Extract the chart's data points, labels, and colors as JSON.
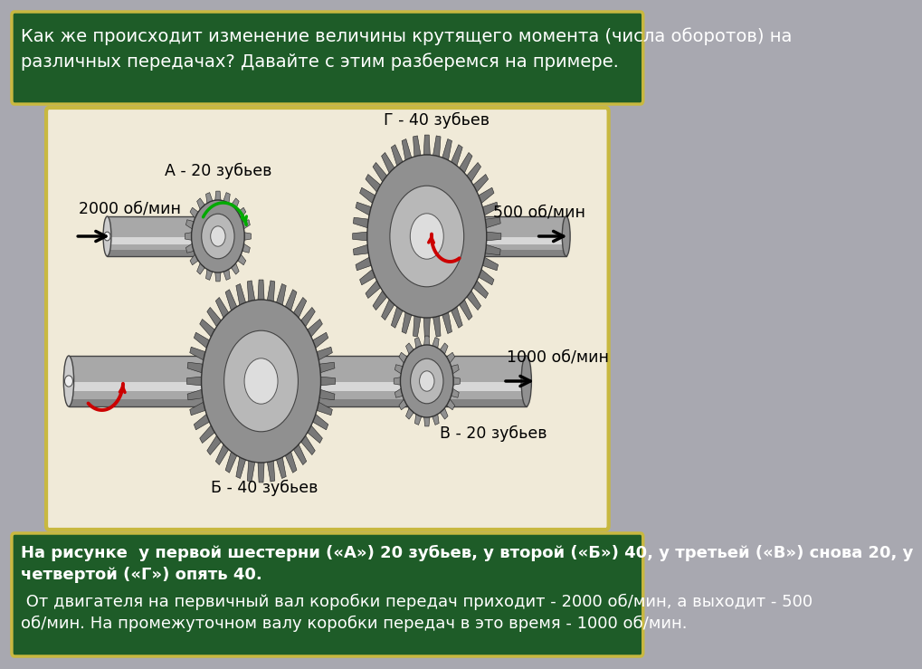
{
  "background_color": "#a8a8b0",
  "header_bg": "#1e5c28",
  "header_text_line1": "Как же происходит изменение величины крутящего момента (числа оборотов) на",
  "header_text_line2": "различных передачах? Давайте с этим разберемся на примере.",
  "header_text_color": "#ffffff",
  "header_fontsize": 14,
  "footer_bg": "#1e5c28",
  "footer_border": "#c8b840",
  "footer_text_line1": "На рисунке  у первой шестерни («А») 20 зубьев, у второй («Б») 40, у третьей («В») снова 20, у",
  "footer_text_line2": "четвертой («Г») опять 40.",
  "footer_text_line3": " От двигателя на первичный вал коробки передач приходит - 2000 об/мин, а выходит - 500",
  "footer_text_line4": "об/мин. На промежуточном валу коробки передач в это время - 1000 об/мин.",
  "footer_fontsize": 13,
  "footer_text_color": "#ffffff",
  "image_bg": "#f0ead8",
  "image_border": "#c8b840",
  "label_A": "А - 20 зубьев",
  "label_B": "Б - 40 зубьев",
  "label_V": "В - 20 зубьев",
  "label_G": "Г - 40 зубьев",
  "label_2000": "2000 об/мин",
  "label_1000": "1000 об/мин",
  "label_500": "500 об/мин",
  "gear_color_dark": "#787878",
  "gear_color_mid": "#909090",
  "gear_color_light": "#b8b8b8",
  "shaft_color": "#a8a8a8",
  "shaft_highlight": "#e0e0e0",
  "shaft_shadow": "#606060"
}
